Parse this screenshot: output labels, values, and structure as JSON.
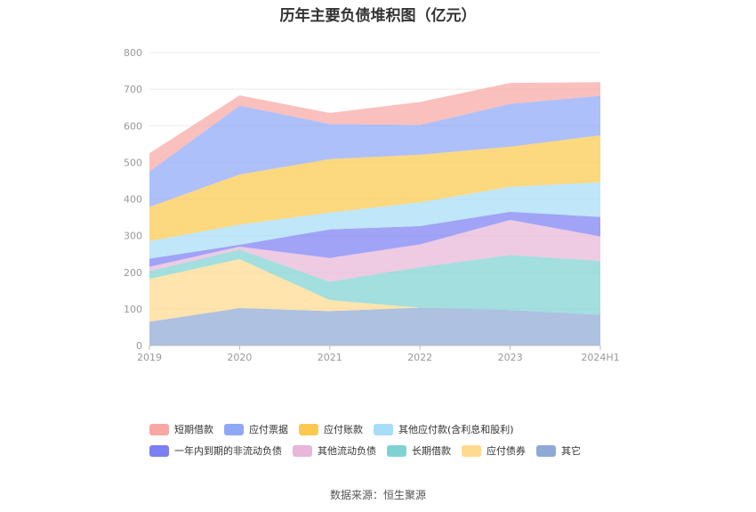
{
  "title": "历年主要负债堆积图（亿元）",
  "source": "数据来源：恒生聚源",
  "chart_data": {
    "type": "area",
    "stacked": true,
    "categories": [
      "2019",
      "2020",
      "2021",
      "2022",
      "2023",
      "2024H1"
    ],
    "yticks": [
      0,
      100,
      200,
      300,
      400,
      500,
      600,
      700,
      800
    ],
    "ylim": [
      0,
      800
    ],
    "grid": true,
    "legend_position": "bottom",
    "series": [
      {
        "name": "其它",
        "color": "#8fa9d6",
        "values": [
          65,
          102,
          94,
          103,
          97,
          84
        ]
      },
      {
        "name": "应付债券",
        "color": "#ffd98e",
        "values": [
          117,
          134,
          30,
          0,
          0,
          0
        ]
      },
      {
        "name": "长期借款",
        "color": "#7ed3d1",
        "values": [
          21,
          26,
          50,
          111,
          150,
          147
        ]
      },
      {
        "name": "其他流动负债",
        "color": "#e8b6d8",
        "values": [
          12,
          8,
          65,
          62,
          96,
          67
        ]
      },
      {
        "name": "一年内到期的非流动负债",
        "color": "#7b7ff2",
        "values": [
          22,
          5,
          78,
          50,
          22,
          53
        ]
      },
      {
        "name": "其他应付款(含利息和股利)",
        "color": "#a6ddf7",
        "values": [
          48,
          55,
          46,
          65,
          68,
          95
        ]
      },
      {
        "name": "应付账款",
        "color": "#fbc94e",
        "values": [
          93,
          137,
          146,
          130,
          110,
          128
        ]
      },
      {
        "name": "应付票据",
        "color": "#8fa8f6",
        "values": [
          97,
          188,
          96,
          81,
          117,
          108
        ]
      },
      {
        "name": "短期借款",
        "color": "#f8a8a4",
        "values": [
          50,
          28,
          30,
          63,
          57,
          37
        ]
      }
    ]
  },
  "legend_rows": [
    [
      "短期借款",
      "应付票据",
      "应付账款",
      "其他应付款(含利息和股利)"
    ],
    [
      "一年内到期的非流动负债",
      "其他流动负债",
      "长期借款",
      "应付债券",
      "其它"
    ]
  ]
}
